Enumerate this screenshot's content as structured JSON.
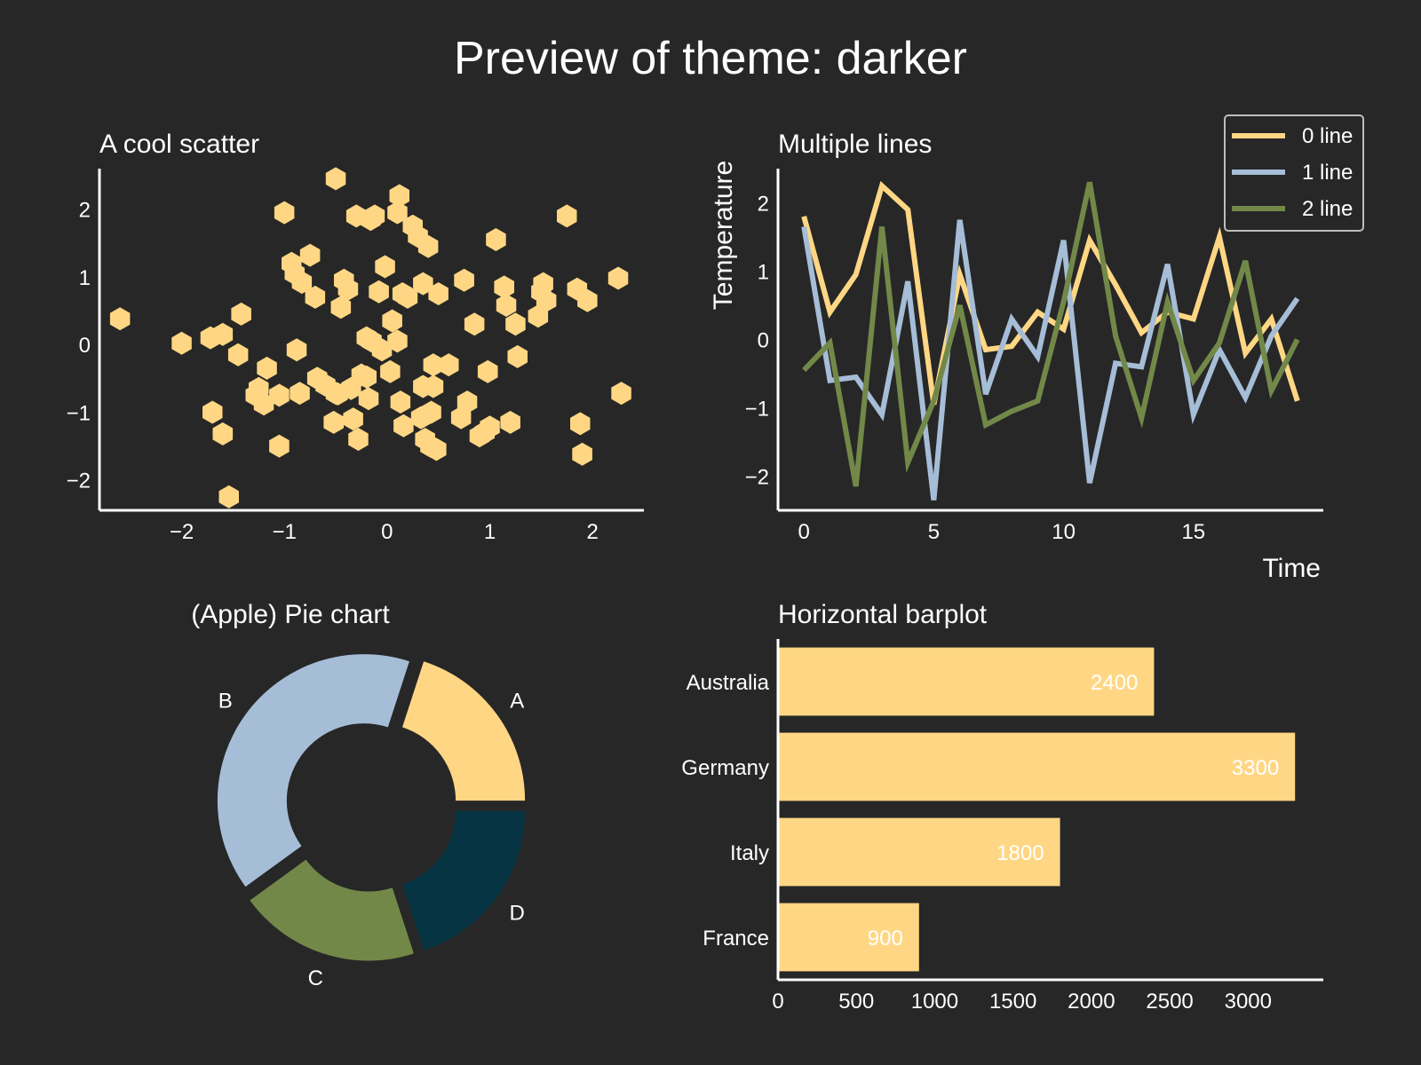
{
  "figure": {
    "title": "Preview of theme: darker",
    "background": "#272727",
    "text_color": "#ffffff",
    "palette": [
      "#ffd784",
      "#a6bdd7",
      "#728849",
      "#063341"
    ]
  },
  "chart_data": [
    {
      "type": "scatter",
      "title": "A cool scatter",
      "xlabel": "",
      "ylabel": "",
      "marker": "hexagon",
      "color": "#ffd784",
      "xlim": [
        -2.8,
        2.5
      ],
      "ylim": [
        -2.45,
        2.6
      ],
      "xticks": [
        -2,
        -1,
        0,
        1,
        2
      ],
      "yticks": [
        -2,
        -1,
        0,
        1,
        2
      ],
      "x": [
        -2.6,
        -2.0,
        -1.72,
        -1.7,
        -1.42,
        -1.45,
        -1.6,
        -1.6,
        -1.54,
        -1.17,
        -1.25,
        -1.2,
        -1.28,
        -1.05,
        -1.0,
        -1.05,
        -0.93,
        -0.9,
        -0.85,
        -0.83,
        -0.75,
        -0.88,
        -0.7,
        -0.68,
        -0.6,
        -0.52,
        -0.5,
        -0.45,
        -0.42,
        -0.48,
        -0.38,
        -0.35,
        -0.3,
        -0.28,
        -0.33,
        -0.25,
        -0.2,
        -0.16,
        -0.2,
        -0.15,
        -0.18,
        -0.12,
        -0.08,
        -0.05,
        -0.02,
        0.03,
        0.05,
        0.1,
        0.12,
        0.15,
        0.1,
        0.13,
        0.16,
        0.2,
        0.25,
        0.33,
        0.3,
        0.35,
        0.35,
        0.37,
        0.4,
        0.42,
        0.45,
        0.43,
        0.45,
        0.48,
        0.5,
        0.6,
        0.72,
        0.75,
        0.78,
        0.85,
        0.9,
        0.95,
        0.98,
        1.0,
        1.06,
        1.14,
        1.16,
        1.2,
        1.25,
        1.27,
        1.47,
        1.5,
        1.52,
        1.55,
        1.75,
        1.85,
        1.88,
        1.9,
        1.95,
        2.25,
        2.28,
        -0.5
      ],
      "y": [
        0.38,
        0.02,
        0.1,
        -1.0,
        0.45,
        -0.15,
        -1.32,
        0.15,
        -2.25,
        -0.35,
        -0.65,
        -0.88,
        -0.75,
        -0.75,
        1.95,
        -1.5,
        1.2,
        1.05,
        -0.72,
        0.92,
        1.32,
        -0.08,
        0.7,
        -0.5,
        -0.6,
        -1.15,
        2.45,
        0.55,
        0.95,
        -0.73,
        0.82,
        -0.65,
        1.9,
        -1.4,
        -1.1,
        -0.45,
        -0.48,
        1.85,
        0.1,
        0.05,
        -0.8,
        1.9,
        0.78,
        -0.08,
        1.15,
        -0.4,
        0.35,
        0.05,
        2.2,
        0.75,
        1.95,
        -0.85,
        -1.2,
        0.7,
        1.75,
        -1.08,
        1.6,
        0.9,
        -0.62,
        -1.4,
        1.45,
        -1.5,
        -0.3,
        -1.0,
        -0.62,
        -1.55,
        0.75,
        -0.3,
        -1.08,
        0.95,
        -0.85,
        0.3,
        -1.35,
        -1.3,
        -0.4,
        -1.22,
        1.55,
        0.85,
        0.58,
        -1.15,
        0.3,
        -0.18,
        0.42,
        0.78,
        0.9,
        0.65,
        1.9,
        0.82,
        -1.17,
        -1.62,
        0.65,
        0.98,
        -0.72,
        -0.72
      ]
    },
    {
      "type": "line",
      "title": "Multiple lines",
      "xlabel": "Time",
      "ylabel": "Temperature",
      "xlim": [
        -1,
        20
      ],
      "ylim": [
        -2.5,
        2.5
      ],
      "xticks": [
        0,
        5,
        10,
        15
      ],
      "yticks": [
        -2,
        -1,
        0,
        1,
        2
      ],
      "legend_position": "top-right",
      "x": [
        0,
        1,
        2,
        3,
        4,
        5,
        6,
        7,
        8,
        9,
        10,
        11,
        12,
        13,
        14,
        15,
        16,
        17,
        18,
        19
      ],
      "series": [
        {
          "name": "0 line",
          "color": "#ffd784",
          "values": [
            1.8,
            0.4,
            0.95,
            2.25,
            1.9,
            -0.95,
            0.95,
            -0.15,
            -0.1,
            0.4,
            0.15,
            1.45,
            0.8,
            0.1,
            0.4,
            0.3,
            1.5,
            -0.2,
            0.3,
            -0.9
          ]
        },
        {
          "name": "1 line",
          "color": "#a6bdd7",
          "values": [
            1.65,
            -0.6,
            -0.55,
            -1.1,
            0.85,
            -2.35,
            1.75,
            -0.8,
            0.3,
            -0.25,
            1.45,
            -2.1,
            -0.35,
            -0.4,
            1.1,
            -1.1,
            -0.15,
            -0.85,
            0.05,
            0.6
          ]
        },
        {
          "name": "2 line",
          "color": "#728849",
          "values": [
            -0.45,
            -0.05,
            -2.15,
            1.65,
            -1.8,
            -0.9,
            0.5,
            -1.25,
            -1.05,
            -0.9,
            0.55,
            2.3,
            0.05,
            -1.15,
            0.55,
            -0.6,
            -0.05,
            1.15,
            -0.75,
            -0.0
          ]
        }
      ]
    },
    {
      "type": "pie",
      "title": "(Apple) Pie chart",
      "style": "donut",
      "labels": [
        "A",
        "B",
        "C",
        "D"
      ],
      "values": [
        20,
        40,
        20,
        20
      ],
      "colors": [
        "#ffd784",
        "#a6bdd7",
        "#728849",
        "#063341"
      ]
    },
    {
      "type": "bar",
      "orientation": "horizontal",
      "title": "Horizontal barplot",
      "xlabel": "",
      "ylabel": "",
      "color": "#ffd784",
      "categories": [
        "Australia",
        "Germany",
        "Italy",
        "France"
      ],
      "values": [
        2400,
        3300,
        1800,
        900
      ],
      "data_labels": [
        "2400",
        "3300",
        "1800",
        "900"
      ],
      "xlim": [
        0,
        3480
      ],
      "xticks": [
        0,
        500,
        1000,
        1500,
        2000,
        2500,
        3000
      ]
    }
  ]
}
